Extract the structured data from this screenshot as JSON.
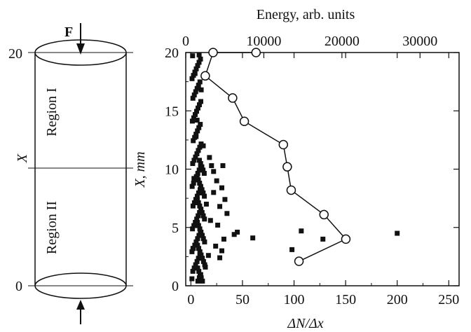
{
  "cylinder": {
    "force_label": "F",
    "axis_label": "X",
    "tick_top": "20",
    "tick_bottom": "0",
    "region_upper": "Region I",
    "region_lower": "Region II"
  },
  "chart_data": {
    "type": "scatter",
    "top_axis_label": "Energy, arb. units",
    "top_ticks": [
      "0",
      "10000",
      "20000",
      "30000"
    ],
    "top_range": [
      0,
      35000
    ],
    "ylabel": "X, mm",
    "xlabel": "ΔN/Δx",
    "bottom_range": [
      -5,
      260
    ],
    "bottom_ticks": [
      "0",
      "50",
      "100",
      "150",
      "200",
      "250"
    ],
    "ylim": [
      0,
      20
    ],
    "y_ticks": [
      "0",
      "5",
      "10",
      "15",
      "20"
    ],
    "energy_series": {
      "x": [
        14500,
        20500,
        17700,
        13500,
        13000,
        12500,
        7500,
        6000,
        2500,
        3500,
        9000
      ],
      "y": [
        2.1,
        4.0,
        6.1,
        8.2,
        10.2,
        12.1,
        14.1,
        16.1,
        18.0,
        20.0,
        20.0
      ]
    },
    "count_series": {
      "x": [
        200,
        107,
        128,
        98,
        60,
        45,
        42,
        32,
        30,
        28,
        26,
        35,
        33,
        30,
        25,
        22,
        20,
        18,
        28,
        31,
        24,
        19,
        15,
        12,
        22,
        17,
        14,
        10,
        8,
        6,
        5,
        4,
        3,
        2,
        1
      ],
      "y": [
        4.5,
        4.7,
        4.0,
        3.1,
        4.1,
        4.6,
        4.4,
        4.0,
        3.0,
        2.4,
        5.2,
        6.2,
        7.4,
        8.4,
        9.0,
        9.8,
        10.3,
        11.0,
        6.8,
        10.3,
        3.4,
        5.6,
        7.0,
        12.0,
        8.0,
        2.6,
        1.6,
        16.8,
        19.8,
        14.2,
        12.8,
        18.2,
        9.2,
        3.2,
        0.6
      ]
    }
  }
}
